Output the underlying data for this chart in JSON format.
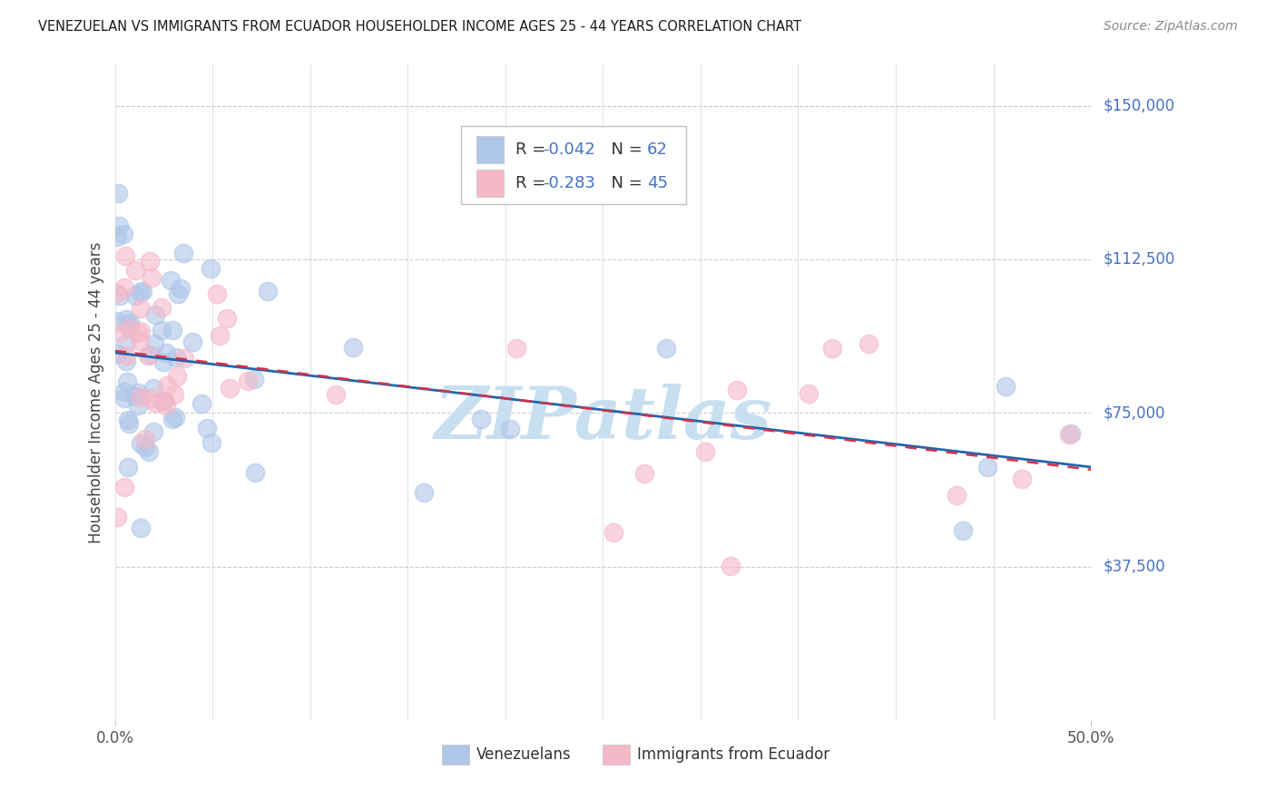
{
  "title": "VENEZUELAN VS IMMIGRANTS FROM ECUADOR HOUSEHOLDER INCOME AGES 25 - 44 YEARS CORRELATION CHART",
  "source": "Source: ZipAtlas.com",
  "ylabel": "Householder Income Ages 25 - 44 years",
  "xlim": [
    0.0,
    0.5
  ],
  "ylim": [
    0,
    160000
  ],
  "ytick_values": [
    37500,
    75000,
    112500,
    150000
  ],
  "xtick_labels_left": "0.0%",
  "xtick_labels_right": "50.0%",
  "blue_R": -0.042,
  "blue_N": 62,
  "pink_R": -0.283,
  "pink_N": 45,
  "blue_scatter_color": "#aec6e8",
  "pink_scatter_color": "#f5b8c8",
  "blue_line_color": "#2166ac",
  "pink_line_color": "#d6304a",
  "ytick_label_color": "#4472c4",
  "legend_text_color": "#333333",
  "legend_value_color": "#4472c4",
  "watermark_text": "ZIPatlas",
  "watermark_color": "#c8dff0",
  "legend_label_blue": "Venezuelans",
  "legend_label_pink": "Immigrants from Ecuador",
  "title_color": "#1a1a1a",
  "source_color": "#888888",
  "ylabel_color": "#444444",
  "grid_color": "#cccccc",
  "background": "#ffffff"
}
